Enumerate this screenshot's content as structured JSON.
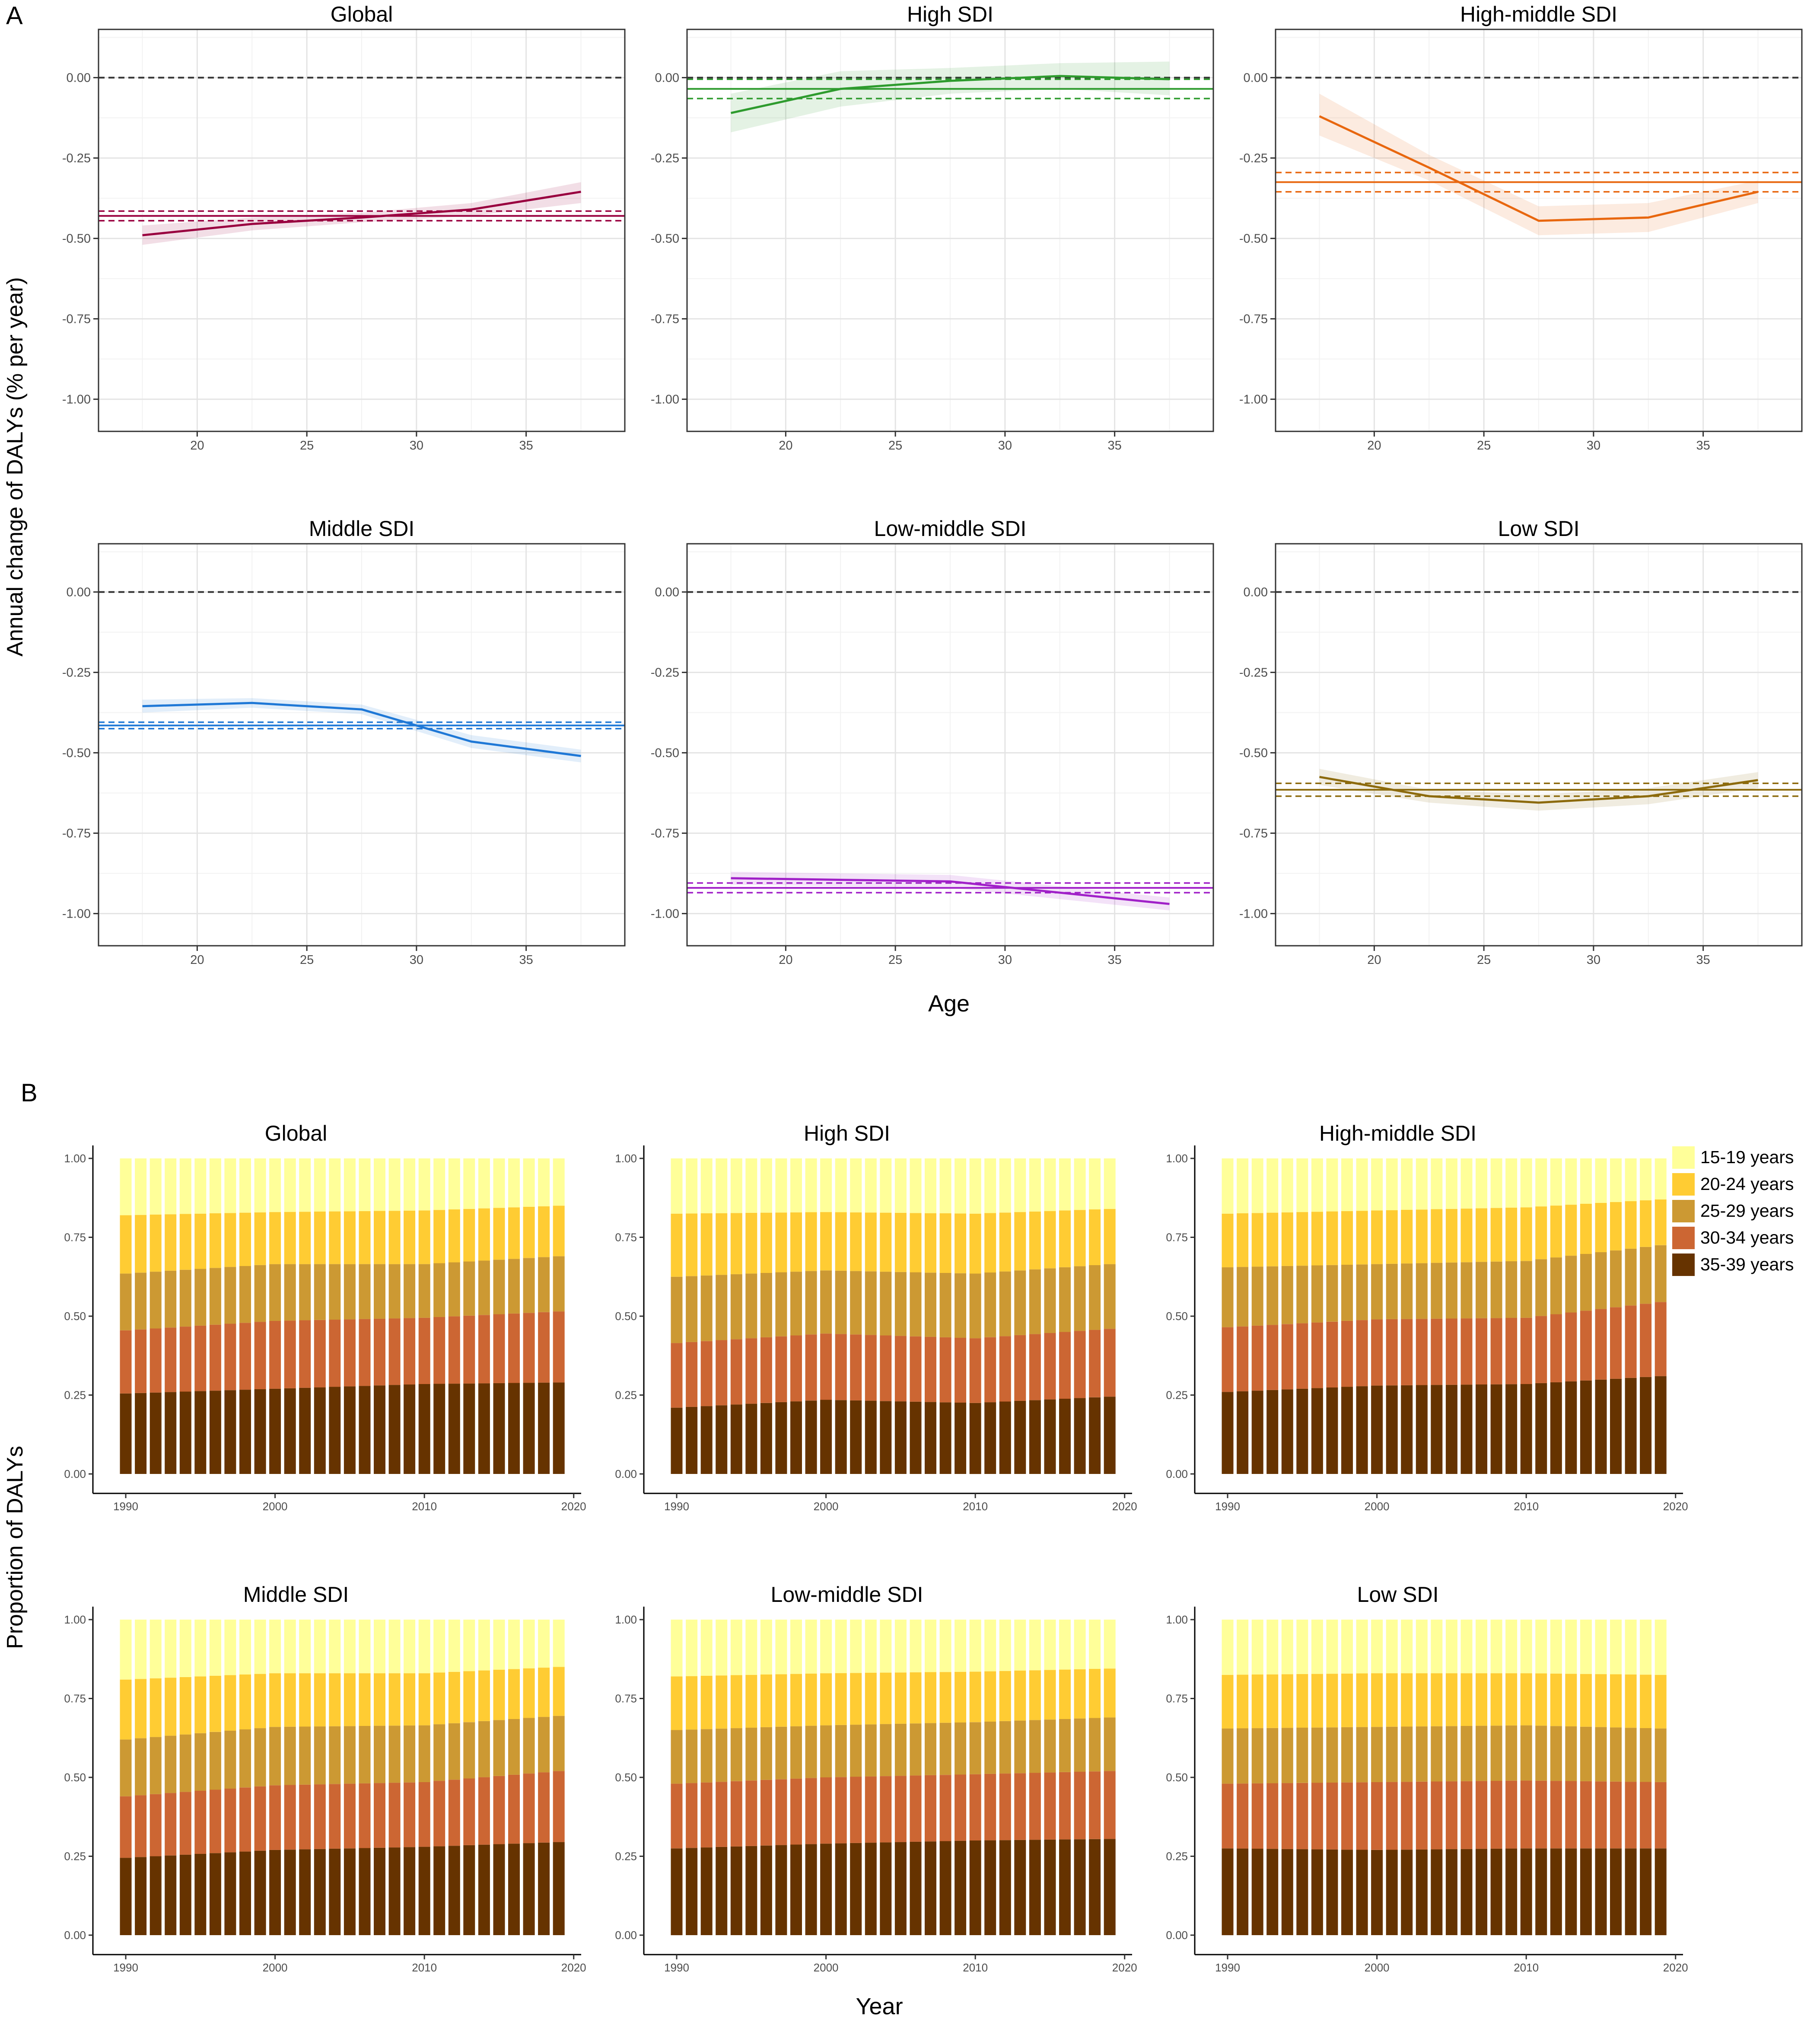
{
  "panel_labels": {
    "a": "A",
    "b": "B"
  },
  "panel_a": {
    "ylabel": "Annual change of DALYs (% per year)",
    "xlabel": "Age",
    "x_ticks": [
      20,
      25,
      30,
      35
    ],
    "y_ticks": [
      0.0,
      -0.25,
      -0.5,
      -0.75,
      -1.0
    ],
    "y_tick_labels": [
      "0.00",
      "-0.25",
      "-0.50",
      "-0.75",
      "-1.00"
    ]
  },
  "panel_b": {
    "ylabel": "Proportion of DALYs",
    "xlabel": "Year",
    "x_ticks": [
      1990,
      2000,
      2010,
      2020
    ],
    "y_ticks": [
      0,
      0.25,
      0.5,
      0.75,
      1.0
    ],
    "y_tick_labels": [
      "0.00",
      "0.25",
      "0.50",
      "0.75",
      "1.00"
    ],
    "legend": [
      {
        "label": "15-19 years",
        "color": "#FFFF99"
      },
      {
        "label": "20-24 years",
        "color": "#FFCC33"
      },
      {
        "label": "25-29 years",
        "color": "#CC9933"
      },
      {
        "label": "30-34 years",
        "color": "#CC6633"
      },
      {
        "label": "35-39 years",
        "color": "#663300"
      }
    ]
  },
  "chart_data": [
    {
      "type": "line",
      "panel": "A",
      "title": "Global",
      "color": "#99003F",
      "xlabel": "Age",
      "ylabel": "Annual change of DALYs (% per year)",
      "xlim": [
        15.5,
        39.5
      ],
      "ylim": [
        -1.1,
        0.15
      ],
      "x": [
        17.5,
        22.5,
        27.5,
        32.5,
        37.5
      ],
      "y": [
        -0.49,
        -0.455,
        -0.435,
        -0.41,
        -0.355
      ],
      "ci_lower": [
        -0.52,
        -0.475,
        -0.45,
        -0.43,
        -0.39
      ],
      "ci_upper": [
        -0.46,
        -0.435,
        -0.42,
        -0.39,
        -0.325
      ],
      "net_drift": -0.43,
      "net_drift_ci": [
        -0.445,
        -0.415
      ]
    },
    {
      "type": "line",
      "panel": "A",
      "title": "High SDI",
      "color": "#2E9B2E",
      "xlabel": "Age",
      "ylabel": "Annual change of DALYs (% per year)",
      "xlim": [
        15.5,
        39.5
      ],
      "ylim": [
        -1.1,
        0.15
      ],
      "x": [
        17.5,
        22.5,
        27.5,
        32.5,
        37.5
      ],
      "y": [
        -0.11,
        -0.035,
        -0.01,
        0.005,
        -0.005
      ],
      "ci_lower": [
        -0.17,
        -0.09,
        -0.05,
        -0.035,
        -0.055
      ],
      "ci_upper": [
        -0.05,
        0.02,
        0.03,
        0.045,
        0.05
      ],
      "net_drift": -0.035,
      "net_drift_ci": [
        -0.065,
        -0.005
      ]
    },
    {
      "type": "line",
      "panel": "A",
      "title": "High-middle SDI",
      "color": "#E8670F",
      "xlabel": "Age",
      "ylabel": "Annual change of DALYs (% per year)",
      "xlim": [
        15.5,
        39.5
      ],
      "ylim": [
        -1.1,
        0.15
      ],
      "x": [
        17.5,
        22.5,
        27.5,
        32.5,
        37.5
      ],
      "y": [
        -0.12,
        -0.28,
        -0.445,
        -0.435,
        -0.355
      ],
      "ci_lower": [
        -0.18,
        -0.32,
        -0.49,
        -0.48,
        -0.39
      ],
      "ci_upper": [
        -0.05,
        -0.24,
        -0.4,
        -0.39,
        -0.32
      ],
      "net_drift": -0.325,
      "net_drift_ci": [
        -0.355,
        -0.295
      ]
    },
    {
      "type": "line",
      "panel": "A",
      "title": "Middle SDI",
      "color": "#1F78D6",
      "xlabel": "Age",
      "ylabel": "Annual change of DALYs (% per year)",
      "xlim": [
        15.5,
        39.5
      ],
      "ylim": [
        -1.1,
        0.15
      ],
      "x": [
        17.5,
        22.5,
        27.5,
        32.5,
        37.5
      ],
      "y": [
        -0.355,
        -0.345,
        -0.365,
        -0.465,
        -0.51
      ],
      "ci_lower": [
        -0.375,
        -0.36,
        -0.38,
        -0.485,
        -0.53
      ],
      "ci_upper": [
        -0.335,
        -0.33,
        -0.35,
        -0.445,
        -0.49
      ],
      "net_drift": -0.415,
      "net_drift_ci": [
        -0.425,
        -0.405
      ]
    },
    {
      "type": "line",
      "panel": "A",
      "title": "Low-middle SDI",
      "color": "#A020C8",
      "xlabel": "Age",
      "ylabel": "Annual change of DALYs (% per year)",
      "xlim": [
        15.5,
        39.5
      ],
      "ylim": [
        -1.1,
        0.15
      ],
      "x": [
        17.5,
        22.5,
        27.5,
        32.5,
        37.5
      ],
      "y": [
        -0.89,
        -0.895,
        -0.9,
        -0.935,
        -0.97
      ],
      "ci_lower": [
        -0.91,
        -0.915,
        -0.92,
        -0.955,
        -0.99
      ],
      "ci_upper": [
        -0.87,
        -0.875,
        -0.88,
        -0.915,
        -0.95
      ],
      "net_drift": -0.92,
      "net_drift_ci": [
        -0.935,
        -0.905
      ]
    },
    {
      "type": "line",
      "panel": "A",
      "title": "Low SDI",
      "color": "#8C6A0C",
      "xlabel": "Age",
      "ylabel": "Annual change of DALYs (% per year)",
      "xlim": [
        15.5,
        39.5
      ],
      "ylim": [
        -1.1,
        0.15
      ],
      "x": [
        17.5,
        22.5,
        27.5,
        32.5,
        37.5
      ],
      "y": [
        -0.575,
        -0.635,
        -0.655,
        -0.635,
        -0.585
      ],
      "ci_lower": [
        -0.6,
        -0.655,
        -0.68,
        -0.66,
        -0.61
      ],
      "ci_upper": [
        -0.55,
        -0.615,
        -0.63,
        -0.61,
        -0.56
      ],
      "net_drift": -0.615,
      "net_drift_ci": [
        -0.635,
        -0.595
      ]
    },
    {
      "type": "bar",
      "panel": "B",
      "stacked": true,
      "title": "Global",
      "xlabel": "Year",
      "ylabel": "Proportion of DALYs",
      "start_year": 1990,
      "end_year": 2019,
      "ylim": [
        0,
        1
      ],
      "series_order": [
        "35-39 years",
        "30-34 years",
        "25-29 years",
        "20-24 years",
        "15-19 years"
      ],
      "anchor_years": [
        1990,
        2000,
        2010,
        2019
      ],
      "cumulative": {
        "35-39 years": [
          0.255,
          0.27,
          0.285,
          0.29
        ],
        "30-34 years": [
          0.455,
          0.485,
          0.495,
          0.515
        ],
        "25-29 years": [
          0.635,
          0.665,
          0.665,
          0.69
        ],
        "20-24 years": [
          0.82,
          0.83,
          0.835,
          0.85
        ],
        "15-19 years": [
          1.0,
          1.0,
          1.0,
          1.0
        ]
      }
    },
    {
      "type": "bar",
      "panel": "B",
      "stacked": true,
      "title": "High SDI",
      "xlabel": "Year",
      "ylabel": "Proportion of DALYs",
      "start_year": 1990,
      "end_year": 2019,
      "ylim": [
        0,
        1
      ],
      "series_order": [
        "35-39 years",
        "30-34 years",
        "25-29 years",
        "20-24 years",
        "15-19 years"
      ],
      "anchor_years": [
        1990,
        2000,
        2010,
        2019
      ],
      "cumulative": {
        "35-39 years": [
          0.21,
          0.235,
          0.225,
          0.245
        ],
        "30-34 years": [
          0.415,
          0.445,
          0.43,
          0.46
        ],
        "25-29 years": [
          0.625,
          0.645,
          0.635,
          0.665
        ],
        "20-24 years": [
          0.825,
          0.83,
          0.825,
          0.84
        ],
        "15-19 years": [
          1.0,
          1.0,
          1.0,
          1.0
        ]
      }
    },
    {
      "type": "bar",
      "panel": "B",
      "stacked": true,
      "title": "High-middle SDI",
      "xlabel": "Year",
      "ylabel": "Proportion of DALYs",
      "start_year": 1990,
      "end_year": 2019,
      "ylim": [
        0,
        1
      ],
      "series_order": [
        "35-39 years",
        "30-34 years",
        "25-29 years",
        "20-24 years",
        "15-19 years"
      ],
      "anchor_years": [
        1990,
        2000,
        2010,
        2019
      ],
      "cumulative": {
        "35-39 years": [
          0.26,
          0.28,
          0.285,
          0.31
        ],
        "30-34 years": [
          0.465,
          0.49,
          0.495,
          0.545
        ],
        "25-29 years": [
          0.655,
          0.665,
          0.675,
          0.725
        ],
        "20-24 years": [
          0.825,
          0.835,
          0.845,
          0.87
        ],
        "15-19 years": [
          1.0,
          1.0,
          1.0,
          1.0
        ]
      }
    },
    {
      "type": "bar",
      "panel": "B",
      "stacked": true,
      "title": "Middle SDI",
      "xlabel": "Year",
      "ylabel": "Proportion of DALYs",
      "start_year": 1990,
      "end_year": 2019,
      "ylim": [
        0,
        1
      ],
      "series_order": [
        "35-39 years",
        "30-34 years",
        "25-29 years",
        "20-24 years",
        "15-19 years"
      ],
      "anchor_years": [
        1990,
        2000,
        2010,
        2019
      ],
      "cumulative": {
        "35-39 years": [
          0.245,
          0.27,
          0.28,
          0.295
        ],
        "30-34 years": [
          0.44,
          0.475,
          0.485,
          0.52
        ],
        "25-29 years": [
          0.62,
          0.66,
          0.665,
          0.695
        ],
        "20-24 years": [
          0.81,
          0.83,
          0.83,
          0.85
        ],
        "15-19 years": [
          1.0,
          1.0,
          1.0,
          1.0
        ]
      }
    },
    {
      "type": "bar",
      "panel": "B",
      "stacked": true,
      "title": "Low-middle SDI",
      "xlabel": "Year",
      "ylabel": "Proportion of DALYs",
      "start_year": 1990,
      "end_year": 2019,
      "ylim": [
        0,
        1
      ],
      "series_order": [
        "35-39 years",
        "30-34 years",
        "25-29 years",
        "20-24 years",
        "15-19 years"
      ],
      "anchor_years": [
        1990,
        2000,
        2010,
        2019
      ],
      "cumulative": {
        "35-39 years": [
          0.275,
          0.29,
          0.3,
          0.305
        ],
        "30-34 years": [
          0.48,
          0.5,
          0.51,
          0.52
        ],
        "25-29 years": [
          0.65,
          0.665,
          0.675,
          0.69
        ],
        "20-24 years": [
          0.82,
          0.83,
          0.835,
          0.845
        ],
        "15-19 years": [
          1.0,
          1.0,
          1.0,
          1.0
        ]
      }
    },
    {
      "type": "bar",
      "panel": "B",
      "stacked": true,
      "title": "Low SDI",
      "xlabel": "Year",
      "ylabel": "Proportion of DALYs",
      "start_year": 1990,
      "end_year": 2019,
      "ylim": [
        0,
        1
      ],
      "series_order": [
        "35-39 years",
        "30-34 years",
        "25-29 years",
        "20-24 years",
        "15-19 years"
      ],
      "anchor_years": [
        1990,
        2000,
        2010,
        2019
      ],
      "cumulative": {
        "35-39 years": [
          0.275,
          0.27,
          0.275,
          0.275
        ],
        "30-34 years": [
          0.48,
          0.485,
          0.49,
          0.485
        ],
        "25-29 years": [
          0.655,
          0.66,
          0.665,
          0.655
        ],
        "20-24 years": [
          0.825,
          0.83,
          0.83,
          0.825
        ],
        "15-19 years": [
          1.0,
          1.0,
          1.0,
          1.0
        ]
      }
    }
  ]
}
